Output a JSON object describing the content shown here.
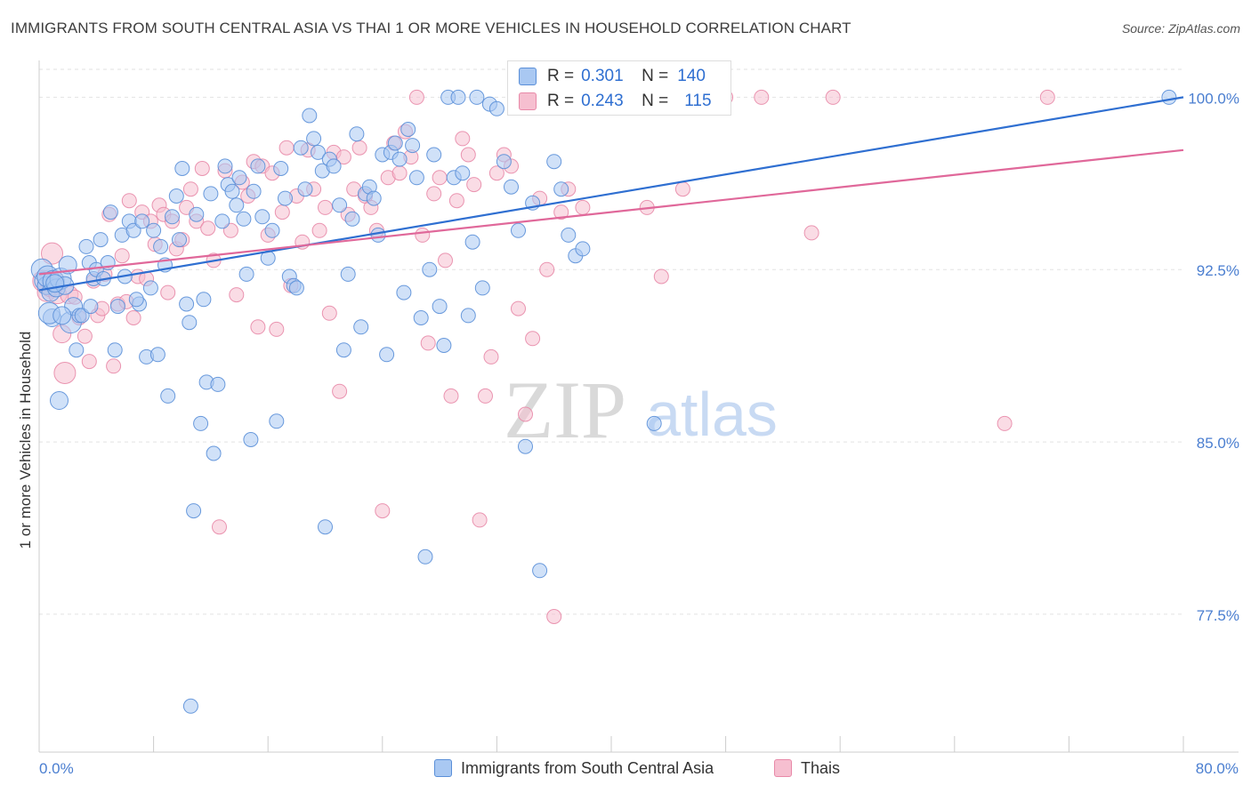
{
  "title": "IMMIGRANTS FROM SOUTH CENTRAL ASIA VS THAI 1 OR MORE VEHICLES IN HOUSEHOLD CORRELATION CHART",
  "source": "Source: ZipAtlas.com",
  "watermark": {
    "zip": "ZIP",
    "atlas": "atlas"
  },
  "colors": {
    "blue_fill": "#a9c8f2",
    "blue_stroke": "#5a8fd8",
    "blue_line": "#2f6fd1",
    "pink_fill": "#f6bfd0",
    "pink_stroke": "#e889a8",
    "pink_line": "#e0689a",
    "tick_label": "#4a7ed0",
    "grid": "#e2e2e2"
  },
  "legend_stats": [
    {
      "r_label": "R =",
      "r_value": "0.301",
      "n_label": "N =",
      "n_value": "140",
      "color": "blue"
    },
    {
      "r_label": "R =",
      "r_value": "0.243",
      "n_label": "N =",
      "n_value": "115",
      "color": "pink"
    }
  ],
  "legend_bottom": [
    {
      "label": "Immigrants from South Central Asia",
      "color": "blue"
    },
    {
      "label": "Thais",
      "color": "pink"
    }
  ],
  "chart_data": {
    "type": "scatter",
    "title": "IMMIGRANTS FROM SOUTH CENTRAL ASIA VS THAI 1 OR MORE VEHICLES IN HOUSEHOLD CORRELATION CHART",
    "xlabel": "",
    "ylabel": "1 or more Vehicles in Household",
    "xlim": [
      0,
      80
    ],
    "ylim": [
      71.5,
      101.6
    ],
    "x_tick_labels": [
      {
        "value": 0,
        "label": "0.0%"
      },
      {
        "value": 80,
        "label": "80.0%"
      }
    ],
    "x_minor_ticks": [
      0,
      8,
      16,
      24,
      32,
      40,
      48,
      56,
      64,
      72,
      80
    ],
    "y_ticks": [
      {
        "value": 100,
        "label": "100.0%"
      },
      {
        "value": 92.5,
        "label": "92.5%"
      },
      {
        "value": 85,
        "label": "85.0%"
      },
      {
        "value": 77.5,
        "label": "77.5%"
      }
    ],
    "grid": true,
    "legend_position": "top-center",
    "series": [
      {
        "name": "Immigrants from South Central Asia",
        "color": "blue",
        "trend": {
          "x": [
            0,
            80
          ],
          "y": [
            91.6,
            100.0
          ]
        },
        "points": [
          [
            0.2,
            92.5
          ],
          [
            0.3,
            92.0
          ],
          [
            0.5,
            91.8
          ],
          [
            0.6,
            92.2
          ],
          [
            0.8,
            91.5
          ],
          [
            0.9,
            90.4
          ],
          [
            1.0,
            92.0
          ],
          [
            1.2,
            91.7
          ],
          [
            1.4,
            86.8
          ],
          [
            1.5,
            92.1
          ],
          [
            1.8,
            91.8
          ],
          [
            2.0,
            92.7
          ],
          [
            2.2,
            90.2
          ],
          [
            2.4,
            90.9
          ],
          [
            2.6,
            89.0
          ],
          [
            2.8,
            90.5
          ],
          [
            3.0,
            90.5
          ],
          [
            3.3,
            93.5
          ],
          [
            3.5,
            92.8
          ],
          [
            3.8,
            92.1
          ],
          [
            4.0,
            92.5
          ],
          [
            4.3,
            93.8
          ],
          [
            4.5,
            92.1
          ],
          [
            4.8,
            92.8
          ],
          [
            5.0,
            95.0
          ],
          [
            5.3,
            89.0
          ],
          [
            5.5,
            90.9
          ],
          [
            5.8,
            94.0
          ],
          [
            6.0,
            92.2
          ],
          [
            6.3,
            94.6
          ],
          [
            6.6,
            94.2
          ],
          [
            7.0,
            91.0
          ],
          [
            7.2,
            94.6
          ],
          [
            7.5,
            88.7
          ],
          [
            7.8,
            91.7
          ],
          [
            8.0,
            94.2
          ],
          [
            8.3,
            88.8
          ],
          [
            8.5,
            93.5
          ],
          [
            8.8,
            92.7
          ],
          [
            9.0,
            87.0
          ],
          [
            9.3,
            94.8
          ],
          [
            9.6,
            95.7
          ],
          [
            9.8,
            93.8
          ],
          [
            10.0,
            96.9
          ],
          [
            10.3,
            91.0
          ],
          [
            10.5,
            90.2
          ],
          [
            10.8,
            82.0
          ],
          [
            11.0,
            94.9
          ],
          [
            11.3,
            85.8
          ],
          [
            11.5,
            91.2
          ],
          [
            11.7,
            87.6
          ],
          [
            12.0,
            95.8
          ],
          [
            12.2,
            84.5
          ],
          [
            12.5,
            87.5
          ],
          [
            12.8,
            94.6
          ],
          [
            13.0,
            97.0
          ],
          [
            13.2,
            96.2
          ],
          [
            13.5,
            95.9
          ],
          [
            13.8,
            95.3
          ],
          [
            14.0,
            96.5
          ],
          [
            14.3,
            94.7
          ],
          [
            14.5,
            92.3
          ],
          [
            14.8,
            85.1
          ],
          [
            15.0,
            95.9
          ],
          [
            15.3,
            97.0
          ],
          [
            15.6,
            94.8
          ],
          [
            16.0,
            93.0
          ],
          [
            16.3,
            94.2
          ],
          [
            16.6,
            85.9
          ],
          [
            16.9,
            96.9
          ],
          [
            17.2,
            95.6
          ],
          [
            17.5,
            92.2
          ],
          [
            17.8,
            91.8
          ],
          [
            18.0,
            91.7
          ],
          [
            18.3,
            97.8
          ],
          [
            18.6,
            96.0
          ],
          [
            18.9,
            99.2
          ],
          [
            19.2,
            98.2
          ],
          [
            19.5,
            97.6
          ],
          [
            19.8,
            96.8
          ],
          [
            20.0,
            81.3
          ],
          [
            20.3,
            97.3
          ],
          [
            20.6,
            97.0
          ],
          [
            21.0,
            95.3
          ],
          [
            21.3,
            89.0
          ],
          [
            21.6,
            92.3
          ],
          [
            21.9,
            94.7
          ],
          [
            22.2,
            98.4
          ],
          [
            22.5,
            90.0
          ],
          [
            22.8,
            95.8
          ],
          [
            23.1,
            96.1
          ],
          [
            23.4,
            95.6
          ],
          [
            23.7,
            94.0
          ],
          [
            24.0,
            97.5
          ],
          [
            24.3,
            88.8
          ],
          [
            24.6,
            97.6
          ],
          [
            24.9,
            98.0
          ],
          [
            25.2,
            97.3
          ],
          [
            25.5,
            91.5
          ],
          [
            25.8,
            98.6
          ],
          [
            26.1,
            97.9
          ],
          [
            26.4,
            96.5
          ],
          [
            26.7,
            90.4
          ],
          [
            27.0,
            80.0
          ],
          [
            27.3,
            92.5
          ],
          [
            27.6,
            97.5
          ],
          [
            28.0,
            90.9
          ],
          [
            28.3,
            89.2
          ],
          [
            28.6,
            100.0
          ],
          [
            29.0,
            96.5
          ],
          [
            29.3,
            100.0
          ],
          [
            29.6,
            96.7
          ],
          [
            30.0,
            90.5
          ],
          [
            30.3,
            93.7
          ],
          [
            30.6,
            100.0
          ],
          [
            31.0,
            91.7
          ],
          [
            31.5,
            99.7
          ],
          [
            32.0,
            99.5
          ],
          [
            32.5,
            97.2
          ],
          [
            33.0,
            96.1
          ],
          [
            33.5,
            94.2
          ],
          [
            34.0,
            84.8
          ],
          [
            34.5,
            95.4
          ],
          [
            35.0,
            79.4
          ],
          [
            35.5,
            100.0
          ],
          [
            36.0,
            97.2
          ],
          [
            36.5,
            96.0
          ],
          [
            37.0,
            94.0
          ],
          [
            37.5,
            93.1
          ],
          [
            38.0,
            93.4
          ],
          [
            39.0,
            99.8
          ],
          [
            40.0,
            100.0
          ],
          [
            43.0,
            85.8
          ],
          [
            79.0,
            100.0
          ],
          [
            10.6,
            73.5
          ],
          [
            0.7,
            90.6
          ],
          [
            1.1,
            91.9
          ],
          [
            1.6,
            90.5
          ],
          [
            3.6,
            90.9
          ],
          [
            6.8,
            91.2
          ]
        ]
      },
      {
        "name": "Thais",
        "color": "pink",
        "trend": {
          "x": [
            0,
            80
          ],
          "y": [
            92.3,
            97.7
          ]
        },
        "points": [
          [
            0.3,
            92.0
          ],
          [
            0.5,
            91.5
          ],
          [
            0.8,
            91.7
          ],
          [
            1.0,
            92.0
          ],
          [
            1.3,
            91.4
          ],
          [
            1.6,
            89.7
          ],
          [
            1.8,
            88.0
          ],
          [
            2.1,
            91.4
          ],
          [
            2.5,
            91.3
          ],
          [
            2.8,
            90.4
          ],
          [
            3.2,
            89.6
          ],
          [
            3.5,
            88.5
          ],
          [
            3.8,
            92.0
          ],
          [
            4.1,
            90.5
          ],
          [
            4.4,
            90.8
          ],
          [
            4.6,
            92.3
          ],
          [
            4.9,
            94.9
          ],
          [
            5.2,
            88.3
          ],
          [
            5.5,
            91.0
          ],
          [
            5.8,
            93.1
          ],
          [
            6.1,
            91.1
          ],
          [
            6.3,
            95.5
          ],
          [
            6.6,
            90.4
          ],
          [
            6.9,
            92.2
          ],
          [
            7.2,
            95.0
          ],
          [
            7.5,
            92.1
          ],
          [
            7.8,
            94.6
          ],
          [
            8.1,
            93.6
          ],
          [
            8.4,
            95.3
          ],
          [
            8.7,
            94.9
          ],
          [
            9.0,
            91.5
          ],
          [
            9.3,
            94.6
          ],
          [
            9.6,
            93.4
          ],
          [
            10.0,
            93.8
          ],
          [
            10.3,
            95.2
          ],
          [
            10.6,
            96.0
          ],
          [
            11.0,
            94.6
          ],
          [
            11.4,
            96.9
          ],
          [
            11.8,
            94.3
          ],
          [
            12.2,
            92.9
          ],
          [
            12.6,
            81.3
          ],
          [
            13.0,
            96.8
          ],
          [
            13.4,
            94.2
          ],
          [
            13.8,
            91.4
          ],
          [
            14.2,
            96.3
          ],
          [
            14.6,
            95.7
          ],
          [
            15.0,
            97.2
          ],
          [
            15.3,
            90.0
          ],
          [
            15.6,
            97.0
          ],
          [
            16.0,
            94.0
          ],
          [
            16.3,
            96.7
          ],
          [
            16.6,
            89.9
          ],
          [
            17.0,
            95.0
          ],
          [
            17.3,
            97.8
          ],
          [
            17.6,
            91.8
          ],
          [
            18.0,
            95.7
          ],
          [
            18.4,
            93.7
          ],
          [
            18.8,
            97.7
          ],
          [
            19.2,
            96.0
          ],
          [
            19.6,
            94.2
          ],
          [
            20.0,
            95.2
          ],
          [
            20.3,
            90.6
          ],
          [
            20.6,
            97.6
          ],
          [
            21.0,
            87.2
          ],
          [
            21.3,
            97.4
          ],
          [
            21.6,
            94.9
          ],
          [
            22.0,
            96.0
          ],
          [
            22.4,
            97.8
          ],
          [
            22.8,
            95.7
          ],
          [
            23.2,
            95.2
          ],
          [
            23.6,
            94.2
          ],
          [
            24.0,
            82.0
          ],
          [
            24.4,
            96.5
          ],
          [
            24.8,
            98.0
          ],
          [
            25.2,
            96.7
          ],
          [
            25.6,
            98.5
          ],
          [
            26.0,
            97.4
          ],
          [
            26.4,
            100.0
          ],
          [
            26.8,
            94.0
          ],
          [
            27.2,
            89.3
          ],
          [
            27.6,
            95.8
          ],
          [
            28.0,
            96.5
          ],
          [
            28.4,
            92.9
          ],
          [
            28.8,
            87.0
          ],
          [
            29.2,
            95.5
          ],
          [
            29.6,
            98.2
          ],
          [
            30.0,
            97.5
          ],
          [
            30.4,
            96.2
          ],
          [
            30.8,
            81.6
          ],
          [
            31.2,
            87.0
          ],
          [
            31.6,
            88.7
          ],
          [
            32.0,
            96.7
          ],
          [
            32.5,
            97.5
          ],
          [
            33.0,
            97.0
          ],
          [
            33.5,
            90.8
          ],
          [
            34.0,
            86.2
          ],
          [
            34.5,
            89.5
          ],
          [
            35.0,
            95.6
          ],
          [
            35.5,
            92.5
          ],
          [
            36.0,
            77.4
          ],
          [
            36.5,
            95.0
          ],
          [
            37.0,
            96.0
          ],
          [
            38.0,
            95.2
          ],
          [
            39.5,
            100.0
          ],
          [
            42.5,
            95.2
          ],
          [
            43.5,
            92.2
          ],
          [
            45.0,
            96.0
          ],
          [
            47.0,
            99.6
          ],
          [
            48.0,
            100.0
          ],
          [
            50.5,
            100.0
          ],
          [
            54.0,
            94.1
          ],
          [
            55.5,
            100.0
          ],
          [
            67.5,
            85.8
          ],
          [
            70.5,
            100.0
          ],
          [
            0.9,
            93.2
          ]
        ]
      }
    ]
  }
}
